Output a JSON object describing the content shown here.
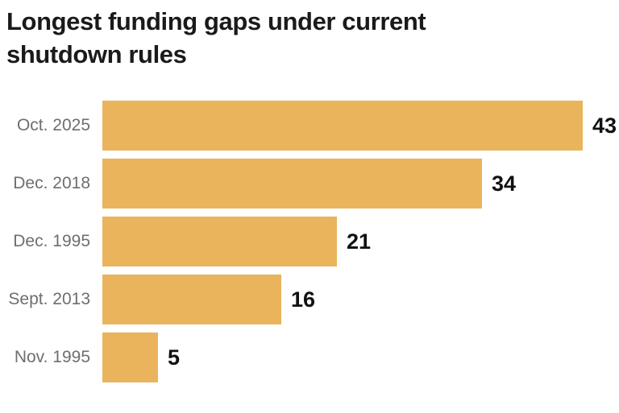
{
  "title": "Longest funding gaps under current shutdown rules",
  "chart_data": {
    "type": "bar",
    "orientation": "horizontal",
    "title": "Longest funding gaps under current shutdown rules",
    "categories": [
      "Oct. 2025",
      "Dec. 2018",
      "Dec. 1995",
      "Sept. 2013",
      "Nov. 1995"
    ],
    "values": [
      43,
      34,
      21,
      16,
      5
    ],
    "value_labels_shown": true,
    "xlim": [
      0,
      43
    ],
    "grid": false,
    "legend": "none",
    "axis_lines": "none",
    "colors": {
      "bar": "#e9b45c",
      "category_label": "#6e6e6e",
      "value_label": "#111111",
      "title": "#1a1a1a",
      "background": "#ffffff"
    }
  }
}
